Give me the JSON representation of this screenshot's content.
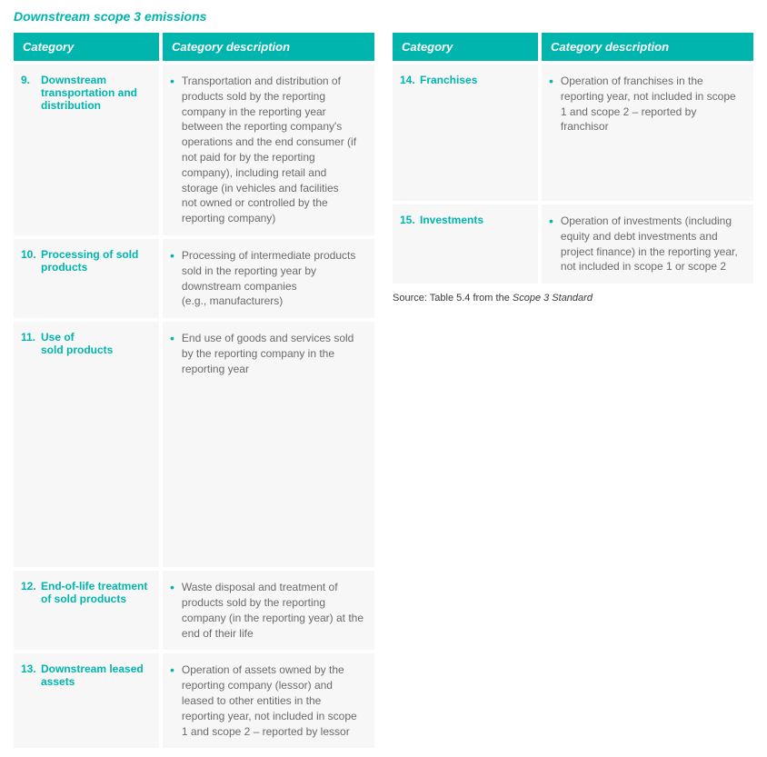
{
  "title": "Downstream scope 3 emissions",
  "headers": {
    "category": "Category",
    "description": "Category description"
  },
  "left_rows": [
    {
      "num": "9.",
      "label": "Downstream transportation and distribution",
      "desc": "Transportation and distribution of products sold by the reporting company in the reporting year between the reporting company's operations and the end consumer (if not paid for by the reporting company), including retail and storage  (in vehicles and facilities\nnot owned or controlled by the reporting company)"
    },
    {
      "num": "10.",
      "label": "Processing of sold products",
      "desc": "Processing of intermediate products sold in the reporting year by downstream companies\n(e.g., manufacturers)"
    },
    {
      "num": "11.",
      "label": "Use of\nsold products",
      "desc": "End use of goods and services sold by the reporting company in the reporting year"
    },
    {
      "num": "12.",
      "label": "End-of-life treatment of sold products",
      "desc": "Waste disposal and treatment of products sold by the reporting company (in the reporting year) at the end of their life"
    },
    {
      "num": "13.",
      "label": "Downstream leased assets",
      "desc": "Operation of assets owned by the reporting company (lessor) and leased to other entities in the reporting year, not included in scope 1 and scope 2 – reported by lessor"
    }
  ],
  "right_rows": [
    {
      "num": "14.",
      "label": "Franchises",
      "desc": "Operation of franchises in the reporting year, not included in scope 1 and scope 2 – reported by franchisor"
    },
    {
      "num": "15.",
      "label": "Investments",
      "desc": "Operation of investments (including equity and debt investments and project finance) in the reporting year, not included in scope 1 or scope 2"
    }
  ],
  "source_prefix": "Source: Table 5.4 from the ",
  "source_italic": "Scope 3 Standard",
  "colors": {
    "accent": "#00b5ad",
    "row_bg": "#f7f7f7",
    "text": "#6a6a6a"
  }
}
